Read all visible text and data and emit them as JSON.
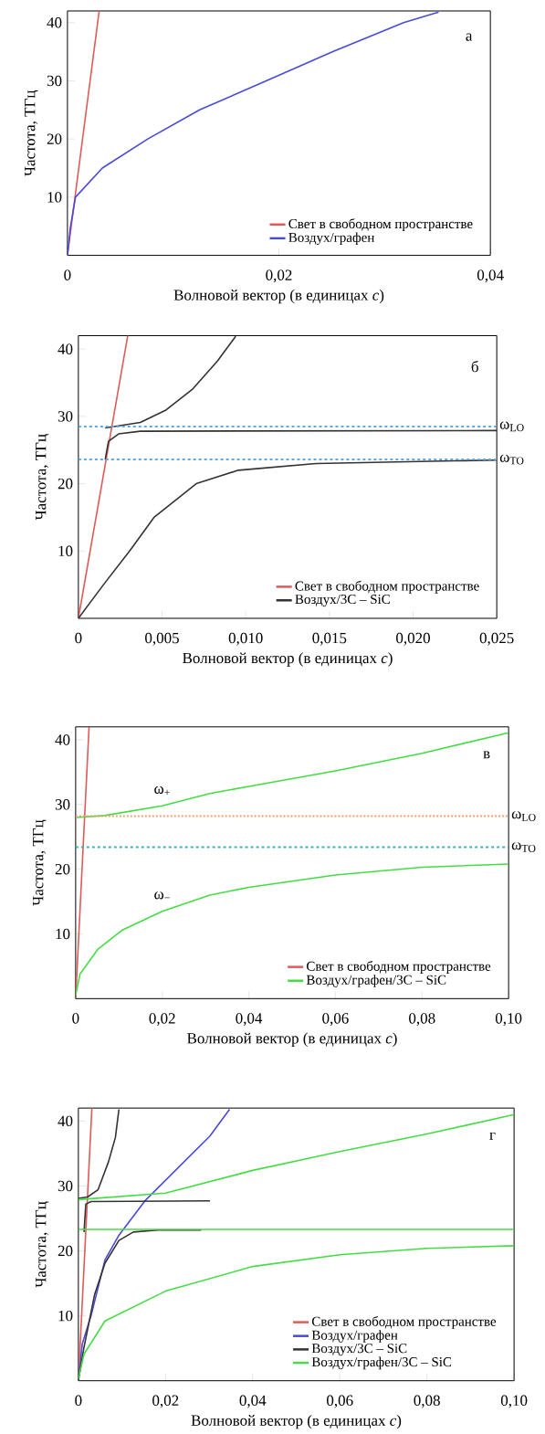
{
  "chart_data": [
    {
      "type": "line",
      "xlabel": "Волновой вектор (в единицах *c*)",
      "ylabel": "Частота, ТГц",
      "xlim": [
        0,
        0.04
      ],
      "ylim": [
        0,
        42
      ],
      "xticks": [
        0,
        {
          "value": 0.02,
          "label": "0,02"
        },
        {
          "value": 0.04,
          "label": "0,04"
        }
      ],
      "yticks": [
        10,
        20,
        30,
        40
      ],
      "legend": "bottom right",
      "annotations": [
        "а"
      ],
      "series": [
        {
          "name": "Свет в свободном пространстве",
          "color": "#e05a5a",
          "x": [
            0,
            0.003
          ],
          "values": [
            0,
            42
          ]
        },
        {
          "name": "Воздух/графен",
          "color": "#4a4ad8",
          "x": [
            0,
            0.00027,
            0.00076,
            0.0033,
            0.0076,
            0.0125,
            0.0188,
            0.0251,
            0.0318,
            0.0351
          ],
          "values": [
            0,
            4.7,
            10,
            15,
            20,
            25,
            30,
            35,
            40,
            41.8
          ]
        }
      ]
    },
    {
      "type": "line",
      "xlabel": "Волновой вектор (в единицах *c*)",
      "ylabel": "Частота, ТГц",
      "xlim": [
        0,
        0.025
      ],
      "ylim": [
        0,
        42
      ],
      "xticks": [
        0,
        {
          "value": 0.005,
          "label": "0,005"
        },
        {
          "value": 0.01,
          "label": "0,010"
        },
        {
          "value": 0.015,
          "label": "0,015"
        },
        {
          "value": 0.02,
          "label": "0,020"
        },
        {
          "value": 0.025,
          "label": "0,025"
        }
      ],
      "yticks": [
        10,
        20,
        30,
        40
      ],
      "legend": "bottom right",
      "annotations": [
        "б"
      ],
      "ref_lines": [
        {
          "axis": "y",
          "value": 28.5,
          "label": "ω$_{LO}$",
          "color": "#5fa8e0",
          "line_style": "dashed"
        },
        {
          "axis": "y",
          "value": 23.6,
          "label": "ω$_{TO}$",
          "color": "#5fa8e0",
          "line_style": "dashed"
        }
      ],
      "series": [
        {
          "name": "Свет в свободном пространстве",
          "color": "#e05a5a",
          "x": [
            0,
            0.00295
          ],
          "values": [
            0,
            42
          ]
        },
        {
          "name": "Воздух/3C – SiC",
          "color": "#333333",
          "x": [
            0,
            0.0015,
            0.00306,
            0.00452,
            0.00704,
            0.00955,
            0.0142,
            0.0225,
            0.025
          ],
          "values": [
            0,
            5,
            10,
            15,
            20,
            22,
            23,
            23.4,
            23.5
          ]
        },
        {
          "color": "#333333",
          "x": [
            0.0016,
            0.0018,
            0.0024,
            0.0037,
            0.025
          ],
          "values": [
            23.6,
            26.3,
            27.4,
            27.8,
            27.9
          ]
        },
        {
          "color": "#333333",
          "x": [
            0.0016,
            0.0037,
            0.0052,
            0.0068,
            0.0083,
            0.0094
          ],
          "values": [
            28.3,
            29.1,
            30.9,
            34,
            38.2,
            41.9
          ]
        }
      ]
    },
    {
      "type": "line",
      "xlabel": "Волновой вектор (в единицах *c*)",
      "ylabel": "Частота, ТГц",
      "xlim": [
        0,
        0.1
      ],
      "ylim": [
        0,
        42
      ],
      "xticks": [
        0,
        {
          "value": 0.02,
          "label": "0,02"
        },
        {
          "value": 0.04,
          "label": "0,04"
        },
        {
          "value": 0.06,
          "label": "0,06"
        },
        {
          "value": 0.08,
          "label": "0,08"
        },
        {
          "value": 0.1,
          "label": "0,10"
        }
      ],
      "yticks": [
        10,
        20,
        30,
        40
      ],
      "legend": "bottom right",
      "annotations": [
        "в",
        {
          "text": "ω$_{+}$",
          "x": 0.02,
          "y": 29.8
        },
        {
          "text": "ω$_{−}$",
          "x": 0.02,
          "y": 13.5
        }
      ],
      "ref_lines": [
        {
          "axis": "y",
          "value": 28.2,
          "label": "ω$_{LO}$",
          "color": "#f0a070",
          "line_style": "dotted"
        },
        {
          "axis": "y",
          "value": 23.4,
          "label": "ω$_{TO}$",
          "color": "#40b0b0",
          "line_style": "dashed"
        }
      ],
      "series": [
        {
          "name": "Свет в свободном пространстве",
          "color": "#e05a5a",
          "x": [
            0,
            0.0031
          ],
          "values": [
            0,
            42
          ]
        },
        {
          "name": "Воздух/графен/3C – SiC",
          "color": "#44dd44",
          "x": [
            0.0002,
            0.0067,
            0.02,
            0.031,
            0.04,
            0.06,
            0.08,
            0.1
          ],
          "values": [
            28.0,
            28.3,
            29.8,
            31.7,
            32.8,
            35.2,
            37.9,
            41.1
          ]
        },
        {
          "color": "#44dd44",
          "x": [
            0,
            0.001,
            0.0051,
            0.0108,
            0.02,
            0.031,
            0.04,
            0.06,
            0.08,
            0.1
          ],
          "values": [
            0.5,
            3.8,
            7.6,
            10.6,
            13.5,
            16.0,
            17.2,
            19.1,
            20.3,
            20.8
          ]
        }
      ]
    },
    {
      "type": "line",
      "xlabel": "Волновой вектор (в единицах *c*)",
      "ylabel": "Частота, ТГц",
      "xlim": [
        0,
        0.1
      ],
      "ylim": [
        0,
        42
      ],
      "xticks": [
        0,
        {
          "value": 0.02,
          "label": "0,02"
        },
        {
          "value": 0.04,
          "label": "0,04"
        },
        {
          "value": 0.06,
          "label": "0,06"
        },
        {
          "value": 0.08,
          "label": "0,08"
        },
        {
          "value": 0.1,
          "label": "0,10"
        }
      ],
      "yticks": [
        10,
        20,
        30,
        40
      ],
      "legend": "bottom right",
      "annotations": [
        "г"
      ],
      "series": [
        {
          "name": "Свет в свободном пространстве",
          "color": "#e05a5a",
          "x": [
            0,
            0.0031
          ],
          "values": [
            0,
            42
          ]
        },
        {
          "name": "Воздух/графен",
          "color": "#4a4ad8",
          "x": [
            0,
            0.0009,
            0.0029,
            0.0061,
            0.0093,
            0.0154,
            0.0302,
            0.0347
          ],
          "values": [
            0,
            5.7,
            10,
            18.6,
            22.4,
            27.8,
            37.7,
            41.8
          ]
        },
        {
          "name": "Воздух/3C – SiC",
          "color": "#333333",
          "x": [
            0,
            0.0013,
            0.0037,
            0.0061,
            0.0093,
            0.0126,
            0.0182,
            0.0282
          ],
          "values": [
            0,
            5.2,
            13.2,
            18.1,
            21.6,
            22.9,
            23.2,
            23.2
          ]
        },
        {
          "color": "#333333",
          "x": [
            0.0013,
            0.0017,
            0.0029,
            0.0302
          ],
          "values": [
            22.9,
            27.2,
            27.6,
            27.7
          ]
        },
        {
          "color": "#333333",
          "x": [
            0,
            0.0021,
            0.0045,
            0.0069,
            0.0085,
            0.0093
          ],
          "values": [
            28.1,
            28.3,
            29.4,
            33.7,
            37.5,
            41.8
          ]
        },
        {
          "name": "Воздух/графен/3C – SiC",
          "color": "#44dd44",
          "x": [
            0,
            0.02,
            0.04,
            0.06,
            0.08,
            0.1
          ],
          "values": [
            27.9,
            28.9,
            32.4,
            35.3,
            38.0,
            41.0
          ]
        },
        {
          "color": "#44dd44",
          "x": [
            0,
            0.1
          ],
          "values": [
            23.3,
            23.3
          ]
        },
        {
          "color": "#44dd44",
          "x": [
            0,
            0.0013,
            0.0061,
            0.02,
            0.04,
            0.06,
            0.08,
            0.1
          ],
          "values": [
            0.3,
            4.1,
            9.2,
            13.8,
            17.6,
            19.4,
            20.4,
            20.8
          ]
        }
      ]
    }
  ]
}
